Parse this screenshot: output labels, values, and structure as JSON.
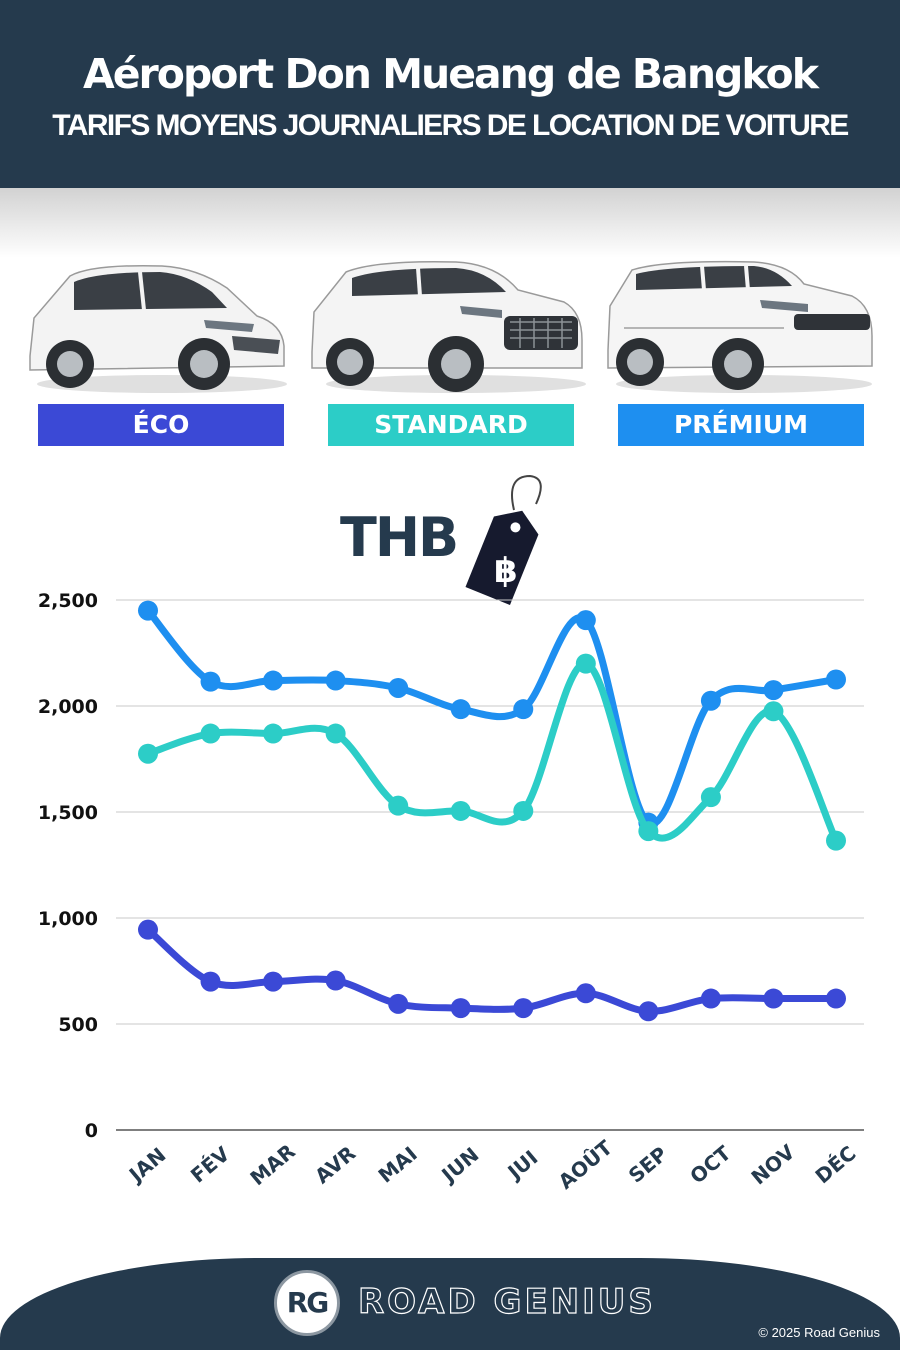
{
  "header": {
    "title": "Aéroport Don Mueang de Bangkok",
    "subtitle": "TARIFS MOYENS JOURNALIERS DE LOCATION DE VOITURE"
  },
  "categories": [
    {
      "label": "ÉCO",
      "color": "#3b49d6",
      "car_icon": "hatchback-car-image"
    },
    {
      "label": "STANDARD",
      "color": "#2ccdc7",
      "car_icon": "suv-car-image"
    },
    {
      "label": "PRÉMIUM",
      "color": "#1e8ff0",
      "car_icon": "luxury-suv-car-image"
    }
  ],
  "currency": {
    "label": "THB",
    "symbol": "฿"
  },
  "chart_data": {
    "type": "line",
    "categories": [
      "JAN",
      "FÉV",
      "MAR",
      "AVR",
      "MAI",
      "JUN",
      "JUI",
      "AOÛT",
      "SEP",
      "OCT",
      "NOV",
      "DÉC"
    ],
    "yticks": [
      "0",
      "500",
      "1,000",
      "1,500",
      "2,000",
      "2,500"
    ],
    "ylim": [
      0,
      2500
    ],
    "grid": true,
    "series": [
      {
        "name": "PRÉMIUM",
        "color": "#1e8ff0",
        "values": [
          2450,
          2115,
          2120,
          2120,
          2085,
          1985,
          1985,
          2405,
          1450,
          2025,
          2075,
          2125
        ]
      },
      {
        "name": "STANDARD",
        "color": "#2ccdc7",
        "values": [
          1775,
          1870,
          1870,
          1870,
          1530,
          1505,
          1505,
          2200,
          1410,
          1570,
          1975,
          1365
        ]
      },
      {
        "name": "ÉCO",
        "color": "#3b49d6",
        "values": [
          945,
          700,
          700,
          705,
          595,
          575,
          575,
          645,
          560,
          620,
          620,
          620
        ]
      }
    ]
  },
  "footer": {
    "logo_mark": "RG",
    "brand": "ROAD GENIUS",
    "copyright": "© 2025 Road Genius"
  }
}
